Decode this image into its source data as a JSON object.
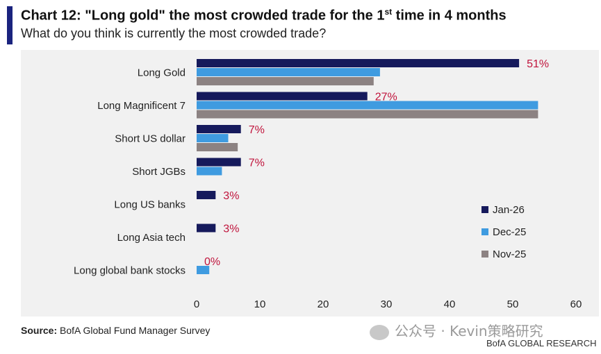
{
  "header": {
    "title_main": "Chart 12: \"Long gold\" the most crowded trade for the 1",
    "title_sup": "st",
    "title_tail": " time in 4 months",
    "subtitle": "What do you think is currently the most crowded trade?"
  },
  "footer": {
    "source_label": "Source:",
    "source_text": " BofA Global Fund Manager Survey",
    "watermark": "公众号 · Kevin策略研究",
    "brand": "BofA GLOBAL RESEARCH"
  },
  "colors": {
    "accent": "#1a237e",
    "jan26": "#161a5c",
    "dec25": "#3f9be0",
    "nov25": "#8c8282",
    "label": "#c0143c",
    "panel": "#f1f1f1"
  },
  "chart_data": {
    "type": "bar",
    "orientation": "horizontal",
    "categories": [
      "Long Gold",
      "Long Magnificent 7",
      "Short US dollar",
      "Short JGBs",
      "Long US banks",
      "Long Asia tech",
      "Long global bank stocks"
    ],
    "series": [
      {
        "name": "Jan-26",
        "values": [
          51,
          27,
          7,
          7,
          3,
          3,
          0
        ],
        "data_labels": [
          "51%",
          "27%",
          "7%",
          "7%",
          "3%",
          "3%",
          "0%"
        ]
      },
      {
        "name": "Dec-25",
        "values": [
          29,
          54,
          5,
          4,
          null,
          null,
          2
        ]
      },
      {
        "name": "Nov-25",
        "values": [
          28,
          54,
          6.5,
          null,
          null,
          null,
          null
        ]
      }
    ],
    "xlim": [
      0,
      60
    ],
    "x_ticks": [
      "0",
      "10",
      "20",
      "30",
      "40",
      "50",
      "60"
    ],
    "grid": false,
    "legend": "right"
  }
}
